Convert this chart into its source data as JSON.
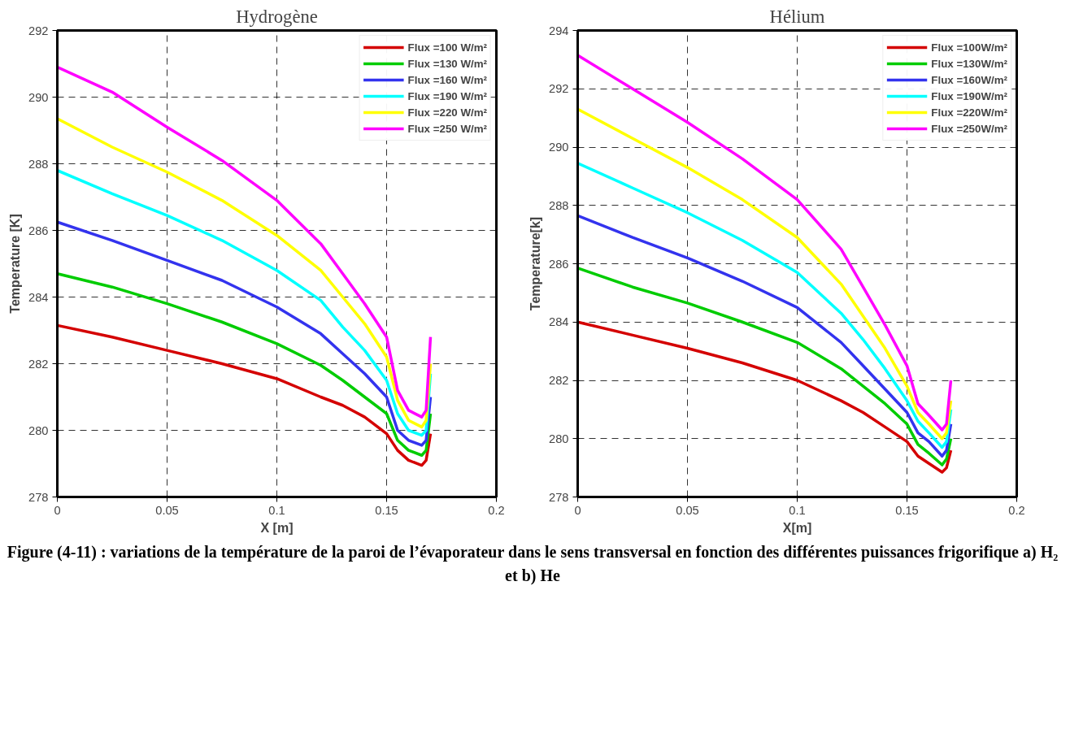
{
  "chart_data": [
    {
      "type": "line",
      "title": "Hydrogène",
      "xlabel": "X [m]",
      "ylabel": "Temperature [K]",
      "xlim": [
        0,
        0.2
      ],
      "ylim": [
        278,
        292
      ],
      "xticks": [
        0,
        0.05,
        0.1,
        0.15,
        0.2
      ],
      "yticks": [
        278,
        280,
        282,
        284,
        286,
        288,
        290,
        292
      ],
      "grid": true,
      "legend": "top right",
      "line_style": "solid",
      "x": [
        0,
        0.025,
        0.05,
        0.075,
        0.1,
        0.12,
        0.13,
        0.14,
        0.15,
        0.155,
        0.16,
        0.166,
        0.168,
        0.17
      ],
      "series": [
        {
          "name": "Flux =100 W/m²",
          "color": "#d40000",
          "values": [
            283.15,
            282.8,
            282.4,
            282.0,
            281.55,
            281.0,
            280.75,
            280.4,
            279.9,
            279.4,
            279.1,
            278.95,
            279.1,
            279.9
          ]
        },
        {
          "name": "Flux =130 W/m²",
          "color": "#00cc00",
          "values": [
            284.7,
            284.3,
            283.8,
            283.25,
            282.6,
            281.95,
            281.5,
            281.0,
            280.5,
            279.7,
            279.4,
            279.25,
            279.4,
            280.5
          ]
        },
        {
          "name": "Flux =160 W/m²",
          "color": "#3333ee",
          "values": [
            286.25,
            285.7,
            285.1,
            284.5,
            283.7,
            282.9,
            282.3,
            281.7,
            281.0,
            280.0,
            279.7,
            279.55,
            279.7,
            281.0
          ]
        },
        {
          "name": "Flux =190 W/m²",
          "color": "#00ffff",
          "values": [
            287.8,
            287.1,
            286.45,
            285.7,
            284.8,
            283.9,
            283.1,
            282.4,
            281.5,
            280.5,
            280.0,
            279.85,
            280.0,
            281.7
          ]
        },
        {
          "name": "Flux =220 W/m²",
          "color": "#ffff00",
          "values": [
            289.35,
            288.5,
            287.75,
            286.9,
            285.85,
            284.8,
            284.0,
            283.2,
            282.2,
            280.9,
            280.3,
            280.1,
            280.3,
            282.0
          ]
        },
        {
          "name": "Flux =250 W/m²",
          "color": "#ff00ff",
          "values": [
            290.9,
            290.15,
            289.1,
            288.1,
            286.9,
            285.6,
            284.7,
            283.8,
            282.8,
            281.2,
            280.6,
            280.4,
            280.6,
            282.8
          ]
        }
      ]
    },
    {
      "type": "line",
      "title": "Hélium",
      "xlabel": "X[m]",
      "ylabel": "Temperature[k]",
      "xlim": [
        0,
        0.2
      ],
      "ylim": [
        278,
        294
      ],
      "xticks": [
        0,
        0.05,
        0.1,
        0.15,
        0.2
      ],
      "yticks": [
        278,
        280,
        282,
        284,
        286,
        288,
        290,
        292,
        294
      ],
      "grid": true,
      "legend": "top right",
      "line_style": "solid",
      "annotations": [
        "Figure (4-11) : variations de la température de la paroi de l’évaporateur dans le sens transversal en fonction des différentes puissances frigorifique a) H₂ et b) He"
      ],
      "x": [
        0,
        0.025,
        0.05,
        0.075,
        0.1,
        0.12,
        0.13,
        0.14,
        0.15,
        0.155,
        0.16,
        0.166,
        0.168,
        0.17
      ],
      "series": [
        {
          "name": "Flux =100W/m²",
          "color": "#d40000",
          "values": [
            284.0,
            283.55,
            283.1,
            282.6,
            282.0,
            281.3,
            280.9,
            280.4,
            279.9,
            279.4,
            279.15,
            278.85,
            279.0,
            279.6
          ]
        },
        {
          "name": "Flux =130W/m²",
          "color": "#00cc00",
          "values": [
            285.85,
            285.2,
            284.65,
            284.0,
            283.3,
            282.4,
            281.8,
            281.2,
            280.5,
            279.8,
            279.5,
            279.1,
            279.3,
            280.0
          ]
        },
        {
          "name": "Flux =160W/m²",
          "color": "#3333ee",
          "values": [
            287.65,
            286.9,
            286.2,
            285.4,
            284.5,
            283.3,
            282.5,
            281.7,
            280.9,
            280.2,
            279.9,
            279.4,
            279.6,
            280.5
          ]
        },
        {
          "name": "Flux =190W/m²",
          "color": "#00ffff",
          "values": [
            289.45,
            288.6,
            287.75,
            286.8,
            285.7,
            284.3,
            283.4,
            282.4,
            281.3,
            280.6,
            280.2,
            279.7,
            279.9,
            281.0
          ]
        },
        {
          "name": "Flux =220W/m²",
          "color": "#ffff00",
          "values": [
            291.3,
            290.3,
            289.3,
            288.2,
            286.9,
            285.3,
            284.2,
            283.1,
            281.8,
            280.9,
            280.5,
            280.0,
            280.2,
            281.3
          ]
        },
        {
          "name": "Flux =250W/m²",
          "color": "#ff00ff",
          "values": [
            293.15,
            292.0,
            290.85,
            289.6,
            288.2,
            286.5,
            285.2,
            283.9,
            282.5,
            281.2,
            280.8,
            280.3,
            280.5,
            282.0
          ]
        }
      ]
    }
  ]
}
